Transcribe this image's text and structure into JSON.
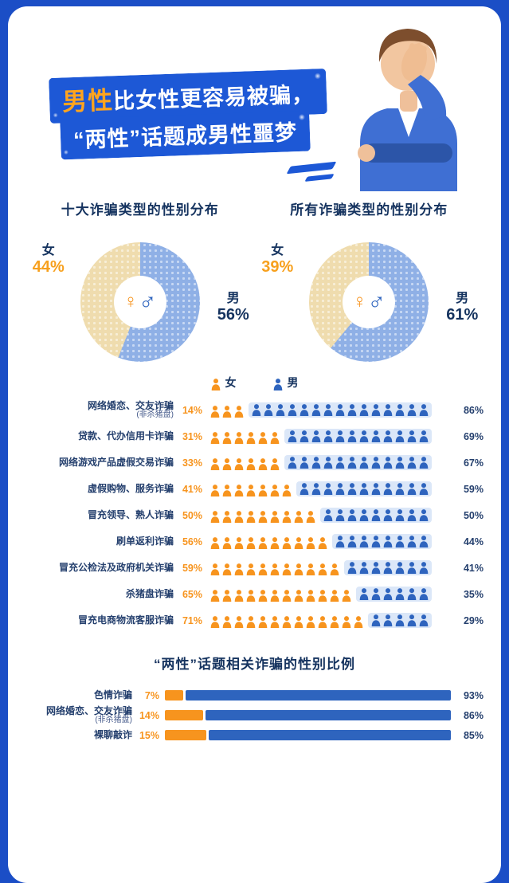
{
  "colors": {
    "background": "#1b4ec6",
    "ribbon": "#1d58d6",
    "female": "#f7941e",
    "male": "#2e64be",
    "pie_female": "#efdcae",
    "pie_male": "#8fb0e6",
    "navy_text": "#15335f",
    "male_strip_bg": "#dbe7f8"
  },
  "header": {
    "line1_em": "男性",
    "line1_rest": "比女性更容易被骗，",
    "line2": "“两性”话题成男性噩梦"
  },
  "pies": {
    "female_char": "女",
    "male_char": "男",
    "female_symbol": "♀",
    "male_symbol": "♂"
  },
  "chart_data": [
    {
      "type": "pie",
      "title": "十大诈骗类型的性别分布",
      "labels": [
        "女",
        "男"
      ],
      "values": [
        44,
        56
      ],
      "unit": "%",
      "colors": [
        "#efdcae",
        "#8fb0e6"
      ]
    },
    {
      "type": "pie",
      "title": "所有诈骗类型的性别分布",
      "labels": [
        "女",
        "男"
      ],
      "values": [
        39,
        61
      ],
      "unit": "%",
      "colors": [
        "#efdcae",
        "#8fb0e6"
      ]
    },
    {
      "type": "bar",
      "subtype": "pictogram-stacked",
      "legend": [
        "女",
        "男"
      ],
      "categories": [
        "网络婚恋、交友诈骗",
        "贷款、代办信用卡诈骗",
        "网络游戏产品虚假交易诈骗",
        "虚假购物、服务诈骗",
        "冒充领导、熟人诈骗",
        "刷单返利诈骗",
        "冒充公检法及政府机关诈骗",
        "杀猪盘诈骗",
        "冒充电商物流客服诈骗"
      ],
      "sublabels": [
        "(非杀猪盘)",
        "",
        "",
        "",
        "",
        "",
        "",
        "",
        ""
      ],
      "series": [
        {
          "name": "女",
          "values": [
            14,
            31,
            33,
            41,
            50,
            56,
            59,
            65,
            71
          ]
        },
        {
          "name": "男",
          "values": [
            86,
            69,
            67,
            59,
            50,
            44,
            41,
            35,
            29
          ]
        }
      ],
      "unit": "%"
    },
    {
      "type": "bar",
      "subtype": "stacked",
      "title": "“两性”话题相关诈骗的性别比例",
      "categories": [
        "色情诈骗",
        "网络婚恋、交友诈骗",
        "裸聊敲诈"
      ],
      "sublabels": [
        "",
        "(非杀猪盘)",
        ""
      ],
      "series": [
        {
          "name": "女",
          "values": [
            7,
            14,
            15
          ]
        },
        {
          "name": "男",
          "values": [
            93,
            86,
            85
          ]
        }
      ],
      "unit": "%"
    }
  ]
}
